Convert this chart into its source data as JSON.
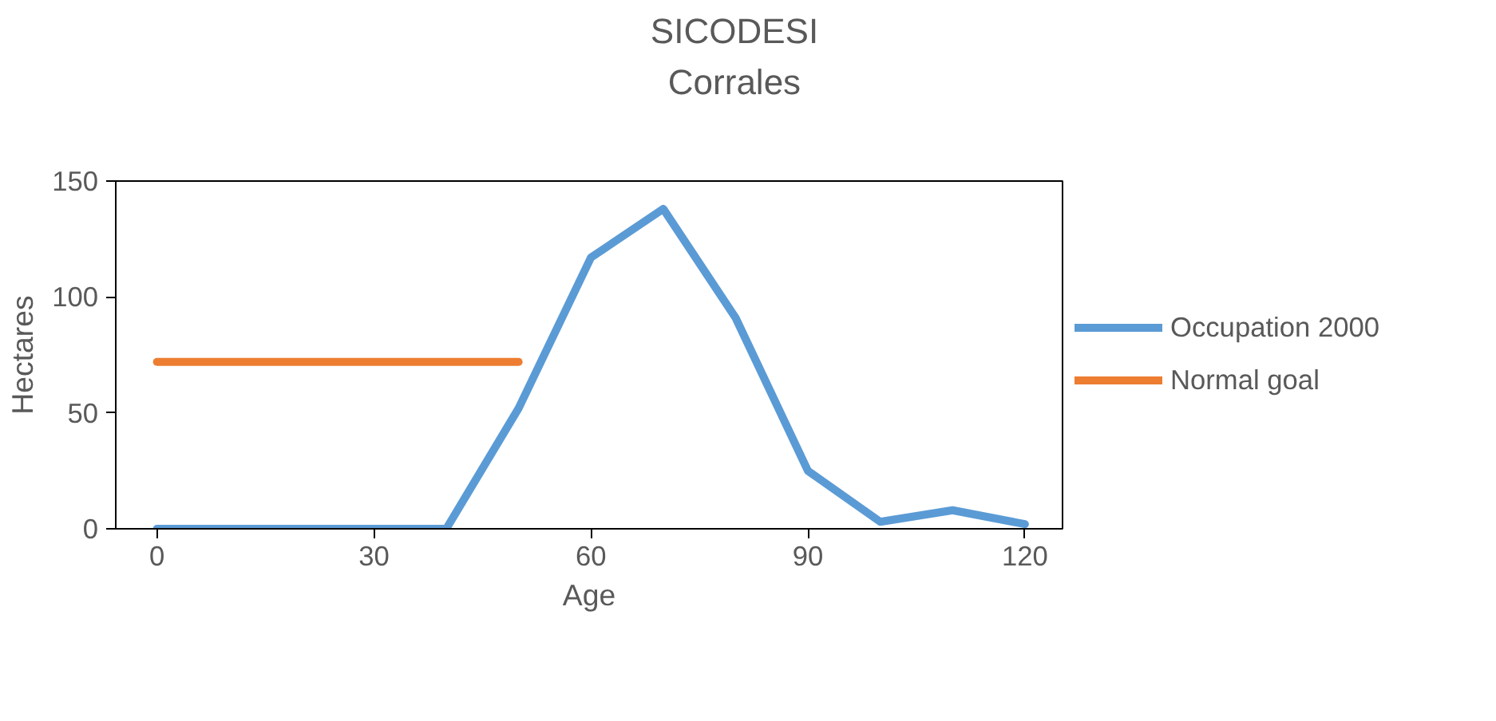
{
  "chart_data": {
    "type": "line",
    "title": "SICODESI\nCorrales",
    "xlabel": "Age",
    "ylabel": "Hectares",
    "xlim": [
      -5.7,
      125.2
    ],
    "xticks": [
      0,
      30,
      60,
      90,
      120
    ],
    "ylim": [
      0,
      150
    ],
    "yticks": [
      0,
      50,
      100,
      150
    ],
    "grid": false,
    "legend": "right",
    "marker": "none",
    "line_style": "solid",
    "series": [
      {
        "name": "Occupation 2000",
        "color": "#5b9bd5",
        "x": [
          0,
          10,
          20,
          30,
          40,
          50,
          60,
          70,
          80,
          90,
          100,
          110,
          120
        ],
        "values": [
          0,
          0,
          0,
          0,
          0,
          52,
          117,
          138,
          91,
          25,
          3,
          8,
          2
        ]
      },
      {
        "name": "Normal goal",
        "color": "#ed7d31",
        "x": [
          0,
          50
        ],
        "values": [
          72,
          72
        ]
      }
    ]
  }
}
